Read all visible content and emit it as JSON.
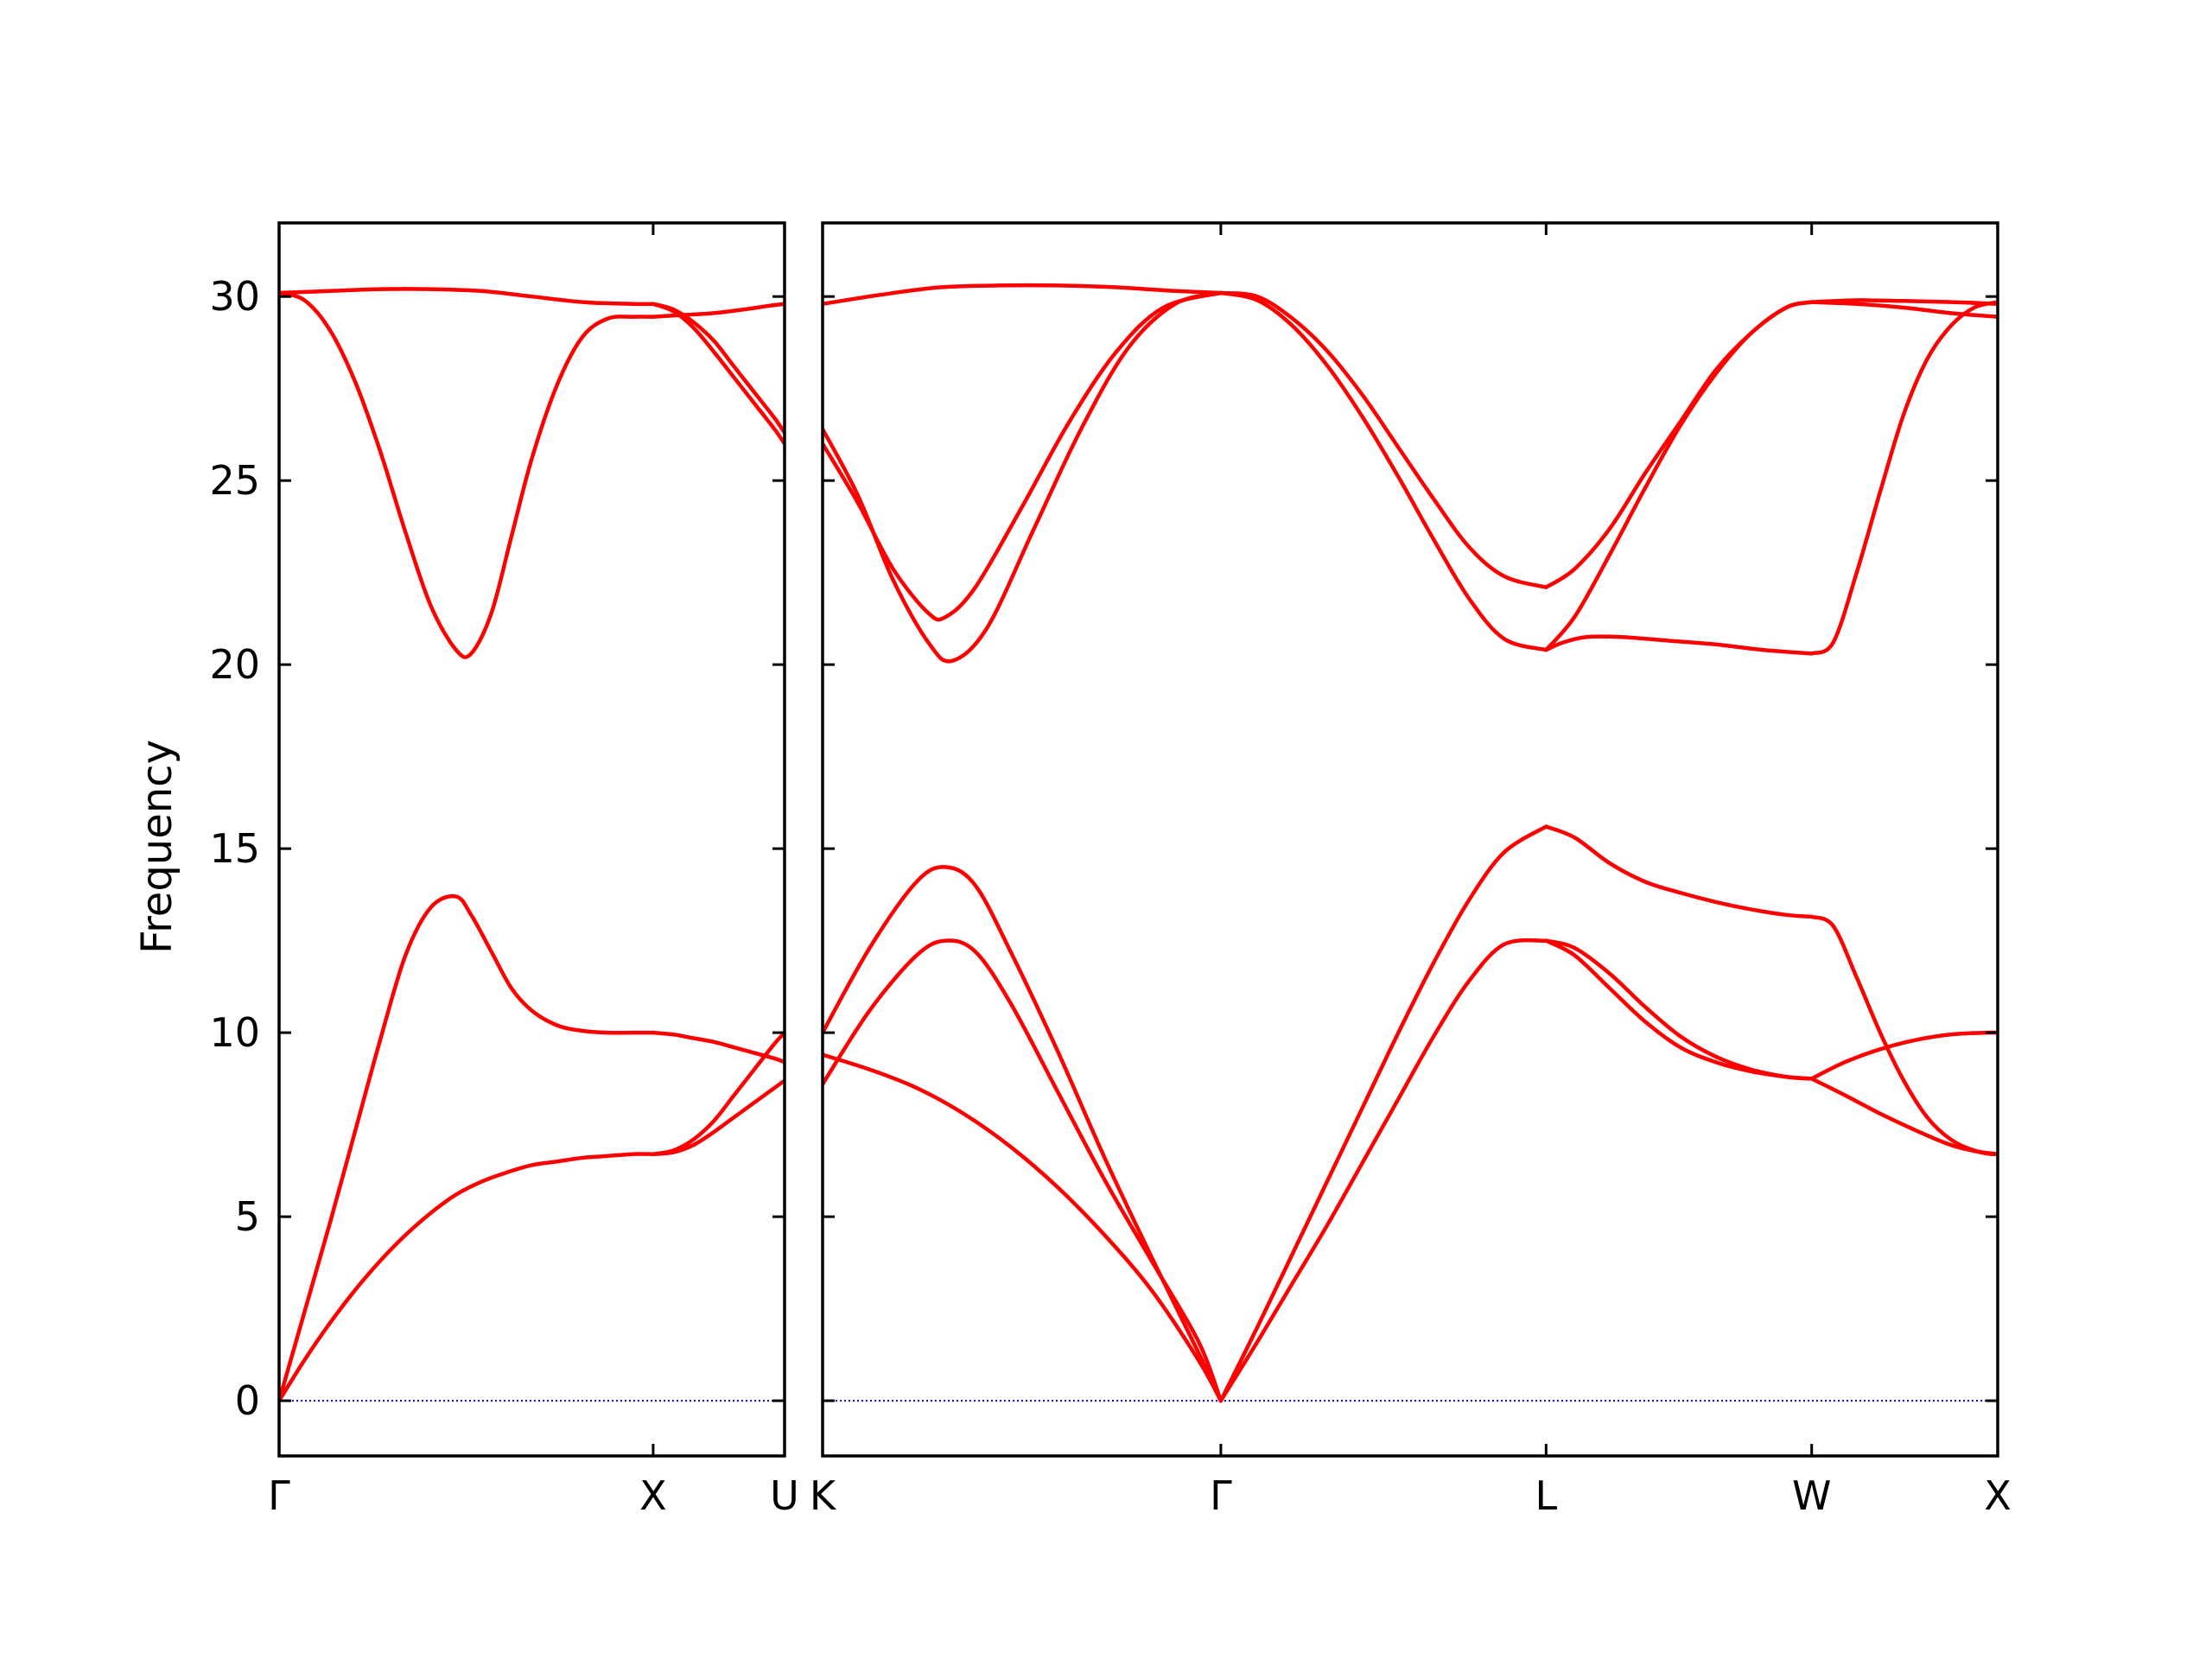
{
  "chart_data": {
    "type": "line",
    "ylabel": "Frequency",
    "ylim": [
      -1.5,
      32
    ],
    "yticks": [
      0,
      5,
      10,
      15,
      20,
      25,
      30
    ],
    "colors": {
      "bands": "#ff0000",
      "zero_line": "#0000cc",
      "axes": "#000000"
    },
    "panels": [
      {
        "id": "left",
        "xticks": [
          {
            "pos": 0.0,
            "label": "Γ"
          },
          {
            "pos": 0.74,
            "label": "X"
          },
          {
            "pos": 1.0,
            "label": "U"
          }
        ],
        "bands": [
          {
            "x": [
              0,
              0.05,
              0.1,
              0.15,
              0.2,
              0.25,
              0.3,
              0.35,
              0.38,
              0.42,
              0.46,
              0.5,
              0.55,
              0.6,
              0.65,
              0.7,
              0.74
            ],
            "y": [
              0,
              2.4,
              4.8,
              7.3,
              9.8,
              12.1,
              13.4,
              13.7,
              13.2,
              12.2,
              11.2,
              10.6,
              10.2,
              10.05,
              10.0,
              10.0,
              10.0
            ]
          },
          {
            "x": [
              0,
              0.05,
              0.1,
              0.15,
              0.2,
              0.25,
              0.3,
              0.35,
              0.4,
              0.45,
              0.5,
              0.55,
              0.6,
              0.65,
              0.7,
              0.74
            ],
            "y": [
              0,
              1.1,
              2.1,
              3.0,
              3.8,
              4.5,
              5.1,
              5.6,
              5.95,
              6.2,
              6.4,
              6.5,
              6.6,
              6.65,
              6.7,
              6.7
            ]
          },
          {
            "x": [
              0,
              0.05,
              0.1,
              0.15,
              0.2,
              0.25,
              0.3,
              0.35,
              0.38,
              0.42,
              0.46,
              0.5,
              0.55,
              0.6,
              0.65,
              0.7,
              0.74
            ],
            "y": [
              30.1,
              29.9,
              29.1,
              27.7,
              25.8,
              23.6,
              21.6,
              20.4,
              20.3,
              21.4,
              23.5,
              25.6,
              27.6,
              28.9,
              29.4,
              29.45,
              29.45
            ]
          },
          {
            "x": [
              0,
              0.1,
              0.2,
              0.3,
              0.4,
              0.5,
              0.6,
              0.7,
              0.74
            ],
            "y": [
              30.1,
              30.15,
              30.2,
              30.2,
              30.15,
              30.0,
              29.85,
              29.8,
              29.8
            ]
          },
          {
            "x": [
              0.74,
              0.78,
              0.82,
              0.86,
              0.9,
              0.94,
              0.98,
              1.0
            ],
            "y": [
              10.0,
              9.95,
              9.85,
              9.75,
              9.6,
              9.45,
              9.3,
              9.2
            ]
          },
          {
            "x": [
              0.74,
              0.78,
              0.82,
              0.86,
              0.9,
              0.94,
              0.98,
              1.0
            ],
            "y": [
              6.7,
              6.8,
              7.1,
              7.6,
              8.3,
              9.0,
              9.7,
              10.0
            ]
          },
          {
            "x": [
              0.74,
              0.78,
              0.82,
              0.86,
              0.9,
              0.94,
              0.98,
              1.0
            ],
            "y": [
              6.7,
              6.75,
              6.95,
              7.3,
              7.7,
              8.1,
              8.5,
              8.7
            ]
          },
          {
            "x": [
              0.74,
              0.8,
              0.86,
              0.92,
              0.97,
              1.0
            ],
            "y": [
              29.45,
              29.5,
              29.55,
              29.65,
              29.75,
              29.8
            ]
          },
          {
            "x": [
              0.74,
              0.78,
              0.82,
              0.86,
              0.9,
              0.94,
              0.98,
              1.0
            ],
            "y": [
              29.8,
              29.6,
              29.15,
              28.5,
              27.8,
              27.1,
              26.4,
              26.0
            ]
          },
          {
            "x": [
              0.74,
              0.78,
              0.82,
              0.86,
              0.9,
              0.94,
              0.98,
              1.0
            ],
            "y": [
              29.8,
              29.65,
              29.3,
              28.8,
              28.1,
              27.4,
              26.7,
              26.3
            ]
          }
        ]
      },
      {
        "id": "right",
        "xticks": [
          {
            "pos": 0.0,
            "label": "K"
          },
          {
            "pos": 0.3389,
            "label": "Γ"
          },
          {
            "pos": 0.6157,
            "label": "L"
          },
          {
            "pos": 0.8417,
            "label": "W"
          },
          {
            "pos": 1.0,
            "label": "X"
          }
        ],
        "bands": [
          {
            "x": [
              0,
              0.04,
              0.08,
              0.12,
              0.16,
              0.2,
              0.24,
              0.28,
              0.32,
              0.3389
            ],
            "y": [
              9.4,
              9.0,
              8.5,
              7.8,
              6.9,
              5.8,
              4.5,
              3.0,
              1.1,
              0
            ]
          },
          {
            "x": [
              0,
              0.04,
              0.08,
              0.105,
              0.13,
              0.16,
              0.2,
              0.24,
              0.28,
              0.32,
              0.3389
            ],
            "y": [
              8.6,
              10.6,
              12.1,
              12.5,
              12.2,
              10.8,
              8.4,
              6.0,
              3.8,
              1.6,
              0
            ]
          },
          {
            "x": [
              0,
              0.04,
              0.08,
              0.105,
              0.13,
              0.16,
              0.2,
              0.24,
              0.28,
              0.32,
              0.3389
            ],
            "y": [
              10.0,
              12.3,
              14.1,
              14.5,
              14.0,
              12.2,
              9.5,
              6.6,
              3.9,
              1.3,
              0
            ]
          },
          {
            "x": [
              0,
              0.03,
              0.06,
              0.09,
              0.11,
              0.14,
              0.18,
              0.22,
              0.26,
              0.3,
              0.3389
            ],
            "y": [
              26.4,
              24.6,
              22.3,
              20.6,
              20.1,
              21.0,
              23.7,
              26.4,
              28.6,
              29.8,
              30.1
            ]
          },
          {
            "x": [
              0,
              0.03,
              0.06,
              0.09,
              0.105,
              0.13,
              0.17,
              0.21,
              0.25,
              0.29,
              0.3389
            ],
            "y": [
              26.0,
              24.4,
              22.6,
              21.4,
              21.3,
              22.1,
              24.3,
              26.6,
              28.5,
              29.7,
              30.1
            ]
          },
          {
            "x": [
              0,
              0.05,
              0.1,
              0.15,
              0.2,
              0.25,
              0.3,
              0.3389
            ],
            "y": [
              29.8,
              30.05,
              30.25,
              30.3,
              30.3,
              30.25,
              30.15,
              30.1
            ]
          },
          {
            "x": [
              0.3389,
              0.37,
              0.4,
              0.43,
              0.46,
              0.49,
              0.52,
              0.55,
              0.58,
              0.6157
            ],
            "y": [
              0,
              1.6,
              3.2,
              4.8,
              6.5,
              8.2,
              9.9,
              11.4,
              12.4,
              12.5
            ]
          },
          {
            "x": [
              0.3389,
              0.37,
              0.4,
              0.43,
              0.46,
              0.49,
              0.52,
              0.55,
              0.58,
              0.6157
            ],
            "y": [
              0,
              2.0,
              4.0,
              6.0,
              8.0,
              10.0,
              11.9,
              13.6,
              14.9,
              15.6
            ]
          },
          {
            "x": [
              0.3389,
              0.37,
              0.4,
              0.43,
              0.46,
              0.49,
              0.52,
              0.55,
              0.58,
              0.6157
            ],
            "y": [
              30.1,
              29.9,
              29.2,
              28.1,
              26.7,
              25.1,
              23.4,
              21.8,
              20.7,
              20.4
            ]
          },
          {
            "x": [
              0.3389,
              0.37,
              0.4,
              0.43,
              0.46,
              0.49,
              0.52,
              0.55,
              0.58,
              0.6157
            ],
            "y": [
              30.1,
              30.0,
              29.4,
              28.5,
              27.3,
              25.9,
              24.5,
              23.2,
              22.4,
              22.1
            ]
          },
          {
            "x": [
              0.6157,
              0.64,
              0.67,
              0.7,
              0.73,
              0.76,
              0.79,
              0.82,
              0.8417
            ],
            "y": [
              12.5,
              12.1,
              11.2,
              10.3,
              9.6,
              9.2,
              8.95,
              8.8,
              8.75
            ]
          },
          {
            "x": [
              0.6157,
              0.64,
              0.67,
              0.7,
              0.73,
              0.76,
              0.79,
              0.82,
              0.8417
            ],
            "y": [
              12.5,
              12.3,
              11.6,
              10.7,
              9.9,
              9.35,
              9.0,
              8.8,
              8.75
            ]
          },
          {
            "x": [
              0.6157,
              0.64,
              0.67,
              0.7,
              0.73,
              0.76,
              0.79,
              0.82,
              0.8417
            ],
            "y": [
              15.6,
              15.3,
              14.6,
              14.1,
              13.8,
              13.55,
              13.35,
              13.2,
              13.15
            ]
          },
          {
            "x": [
              0.6157,
              0.63,
              0.65,
              0.68,
              0.72,
              0.76,
              0.8,
              0.8417
            ],
            "y": [
              20.4,
              20.6,
              20.75,
              20.75,
              20.65,
              20.55,
              20.4,
              20.3
            ]
          },
          {
            "x": [
              0.6157,
              0.64,
              0.67,
              0.7,
              0.73,
              0.76,
              0.79,
              0.82,
              0.8417
            ],
            "y": [
              20.4,
              21.3,
              23.0,
              24.8,
              26.5,
              27.9,
              29.0,
              29.7,
              29.85
            ]
          },
          {
            "x": [
              0.6157,
              0.64,
              0.67,
              0.7,
              0.73,
              0.76,
              0.79,
              0.82,
              0.8417
            ],
            "y": [
              22.1,
              22.6,
              23.7,
              25.2,
              26.6,
              28.0,
              29.0,
              29.7,
              29.85
            ]
          },
          {
            "x": [
              0.8417,
              0.87,
              0.9,
              0.93,
              0.96,
              0.99,
              1.0
            ],
            "y": [
              8.75,
              9.2,
              9.55,
              9.8,
              9.95,
              10.0,
              10.0
            ]
          },
          {
            "x": [
              0.8417,
              0.87,
              0.9,
              0.93,
              0.96,
              0.99,
              1.0
            ],
            "y": [
              8.75,
              8.3,
              7.8,
              7.35,
              6.95,
              6.72,
              6.7
            ]
          },
          {
            "x": [
              0.8417,
              0.86,
              0.88,
              0.9,
              0.92,
              0.94,
              0.96,
              0.98,
              1.0
            ],
            "y": [
              13.15,
              12.9,
              11.5,
              10.0,
              8.7,
              7.7,
              7.1,
              6.8,
              6.7
            ]
          },
          {
            "x": [
              0.8417,
              0.86,
              0.88,
              0.9,
              0.92,
              0.94,
              0.96,
              0.98,
              1.0
            ],
            "y": [
              20.3,
              20.6,
              22.5,
              24.7,
              26.8,
              28.3,
              29.2,
              29.7,
              29.85
            ]
          },
          {
            "x": [
              0.8417,
              0.88,
              0.92,
              0.96,
              1.0
            ],
            "y": [
              29.85,
              29.8,
              29.7,
              29.55,
              29.45
            ]
          },
          {
            "x": [
              0.8417,
              0.88,
              0.92,
              0.96,
              1.0
            ],
            "y": [
              29.85,
              29.9,
              29.88,
              29.85,
              29.8
            ]
          }
        ]
      }
    ]
  }
}
